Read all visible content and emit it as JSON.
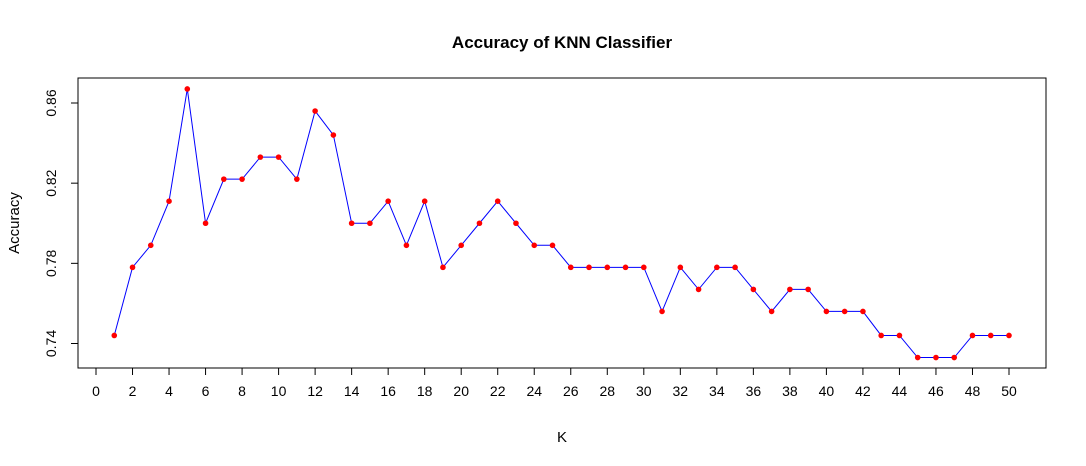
{
  "chart_data": {
    "type": "line",
    "title": "Accuracy of KNN Classifier",
    "xlabel": "K",
    "ylabel": "Accuracy",
    "x": [
      1,
      2,
      3,
      4,
      5,
      6,
      7,
      8,
      9,
      10,
      11,
      12,
      13,
      14,
      15,
      16,
      17,
      18,
      19,
      20,
      21,
      22,
      23,
      24,
      25,
      26,
      27,
      28,
      29,
      30,
      31,
      32,
      33,
      34,
      35,
      36,
      37,
      38,
      39,
      40,
      41,
      42,
      43,
      44,
      45,
      46,
      47,
      48,
      49,
      50
    ],
    "series": [
      {
        "values": [
          0.744,
          0.778,
          0.789,
          0.811,
          0.867,
          0.8,
          0.822,
          0.822,
          0.833,
          0.833,
          0.822,
          0.856,
          0.844,
          0.8,
          0.8,
          0.811,
          0.789,
          0.811,
          0.778,
          0.789,
          0.8,
          0.811,
          0.8,
          0.789,
          0.789,
          0.778,
          0.778,
          0.778,
          0.778,
          0.778,
          0.756,
          0.778,
          0.767,
          0.778,
          0.778,
          0.767,
          0.756,
          0.767,
          0.767,
          0.756,
          0.756,
          0.756,
          0.744,
          0.744,
          0.733,
          0.733,
          0.733,
          0.744,
          0.744,
          0.744
        ],
        "line_color": "#0000ff",
        "marker_color": "#ff0000"
      }
    ],
    "xlim": [
      0,
      50
    ],
    "ylim": [
      0.73,
      0.868
    ],
    "x_ticks": [
      "0",
      "2",
      "4",
      "6",
      "8",
      "10",
      "12",
      "14",
      "16",
      "18",
      "20",
      "22",
      "24",
      "26",
      "28",
      "30",
      "32",
      "34",
      "36",
      "38",
      "40",
      "42",
      "44",
      "46",
      "48",
      "50"
    ],
    "y_ticks": [
      "0.74",
      "0.78",
      "0.82",
      "0.86"
    ],
    "grid": false,
    "legend": "none"
  }
}
